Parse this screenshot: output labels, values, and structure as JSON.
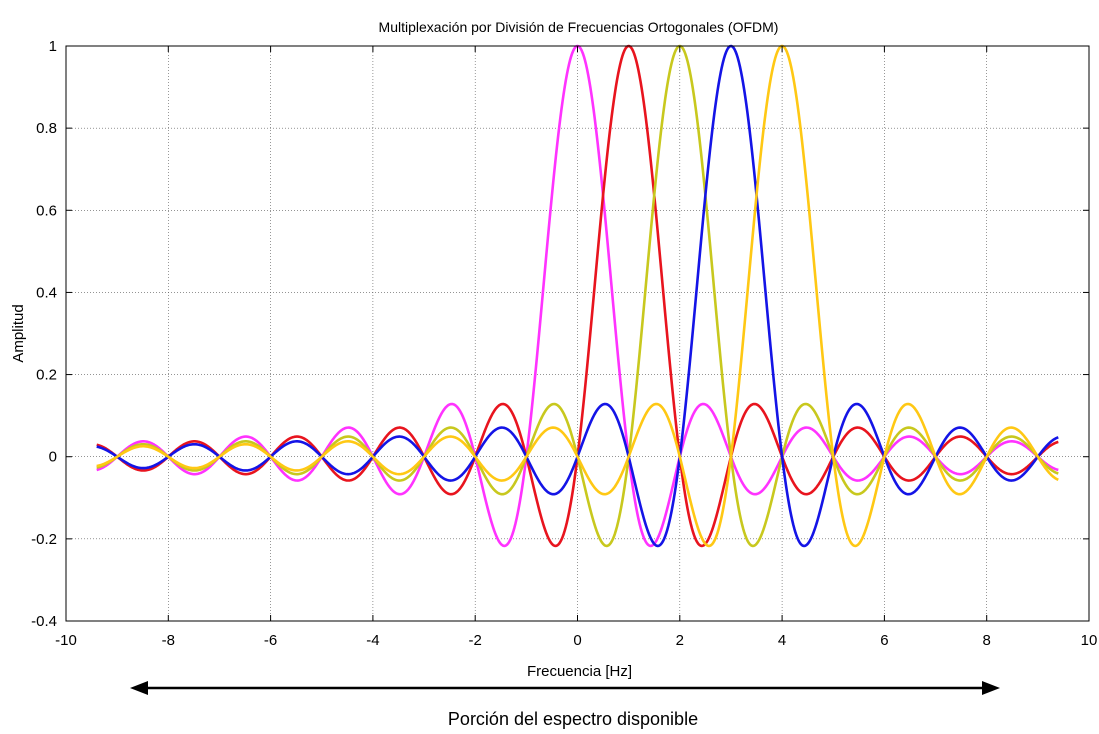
{
  "chart_data": {
    "type": "line",
    "title": "Multiplexación por División de Frecuencias Ortogonales (OFDM)",
    "xlabel": "Frecuencia [Hz]",
    "ylabel": "Amplitud",
    "xlim": [
      -10,
      10
    ],
    "ylim": [
      -0.4,
      1
    ],
    "x_range": [
      -9.4,
      9.4
    ],
    "xticks": [
      -10,
      -8,
      -6,
      -4,
      -2,
      0,
      2,
      4,
      6,
      8,
      10
    ],
    "xtick_labels": [
      "-10",
      "-8",
      "-6",
      "-4",
      "-2",
      "0",
      "2",
      "4",
      "6",
      "8",
      "10"
    ],
    "yticks": [
      -0.4,
      -0.2,
      0,
      0.2,
      0.4,
      0.6,
      0.8,
      1
    ],
    "ytick_labels": [
      "-0.4",
      "-0.2",
      "0",
      "0.2",
      "0.4",
      "0.6",
      "0.8",
      "1"
    ],
    "grid": true,
    "function": "sinc",
    "series": [
      {
        "center": 0,
        "color": "#ff33ff"
      },
      {
        "center": 1,
        "color": "#e8141e"
      },
      {
        "center": 2,
        "color": "#c8c81e"
      },
      {
        "center": 3,
        "color": "#1414e6"
      },
      {
        "center": 4,
        "color": "#ffc814"
      }
    ],
    "annotation": {
      "text": "Porción del espectro disponible",
      "arrow": "double-headed"
    }
  }
}
